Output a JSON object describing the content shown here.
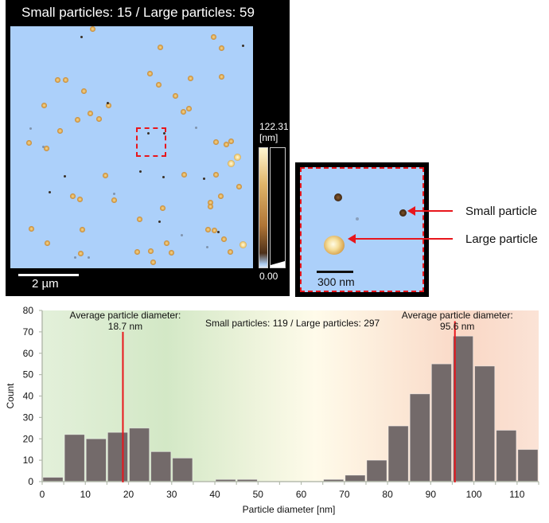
{
  "afm_panel": {
    "title": "Small particles: 15 / Large particles: 59",
    "scale_bar_label": "2 µm",
    "colorbar": {
      "max_label": "122.31",
      "unit_label": "[nm]",
      "min_label": "0.00"
    },
    "background_color": "#acd0fa"
  },
  "zoom_panel": {
    "scale_bar_label": "300 nm",
    "annotations": {
      "small": "Small particle",
      "large": "Large particle"
    },
    "roi_color": "#e8161c"
  },
  "chart_data": {
    "type": "bar",
    "title": "",
    "xlabel": "Particle diameter [nm]",
    "ylabel": "Count",
    "xlim": [
      0,
      115
    ],
    "ylim": [
      0,
      80
    ],
    "bin_width": 5,
    "x_ticks": [
      0,
      10,
      20,
      30,
      40,
      50,
      60,
      70,
      80,
      90,
      100,
      110
    ],
    "y_ticks": [
      0,
      10,
      20,
      30,
      40,
      50,
      60,
      70,
      80
    ],
    "bins": [
      {
        "start": 0,
        "count": 2
      },
      {
        "start": 5,
        "count": 22
      },
      {
        "start": 10,
        "count": 20
      },
      {
        "start": 15,
        "count": 23
      },
      {
        "start": 20,
        "count": 25
      },
      {
        "start": 25,
        "count": 14
      },
      {
        "start": 30,
        "count": 11
      },
      {
        "start": 35,
        "count": 0
      },
      {
        "start": 40,
        "count": 1
      },
      {
        "start": 45,
        "count": 1
      },
      {
        "start": 50,
        "count": 0
      },
      {
        "start": 55,
        "count": 0
      },
      {
        "start": 60,
        "count": 0
      },
      {
        "start": 65,
        "count": 1
      },
      {
        "start": 70,
        "count": 3
      },
      {
        "start": 75,
        "count": 10
      },
      {
        "start": 80,
        "count": 26
      },
      {
        "start": 85,
        "count": 41
      },
      {
        "start": 90,
        "count": 55
      },
      {
        "start": 95,
        "count": 68
      },
      {
        "start": 100,
        "count": 54
      },
      {
        "start": 105,
        "count": 24
      },
      {
        "start": 110,
        "count": 15
      }
    ],
    "annotations": [
      {
        "line1": "Average particle diameter:",
        "line2": "18.7 nm",
        "x": 18.7,
        "line_top": 70
      },
      {
        "line1": "Average particle diameter:",
        "line2": "95.6 nm",
        "x": 95.6,
        "line_top": 75
      }
    ],
    "center_label": "Small particles: 119 / Large particles: 297",
    "grid": false,
    "colors": {
      "bar": "#736a6a",
      "mean_line": "#e8161c",
      "bg_left": "#d3e8c6",
      "bg_mid": "#fffbea",
      "bg_right": "#f9d8c6"
    }
  }
}
